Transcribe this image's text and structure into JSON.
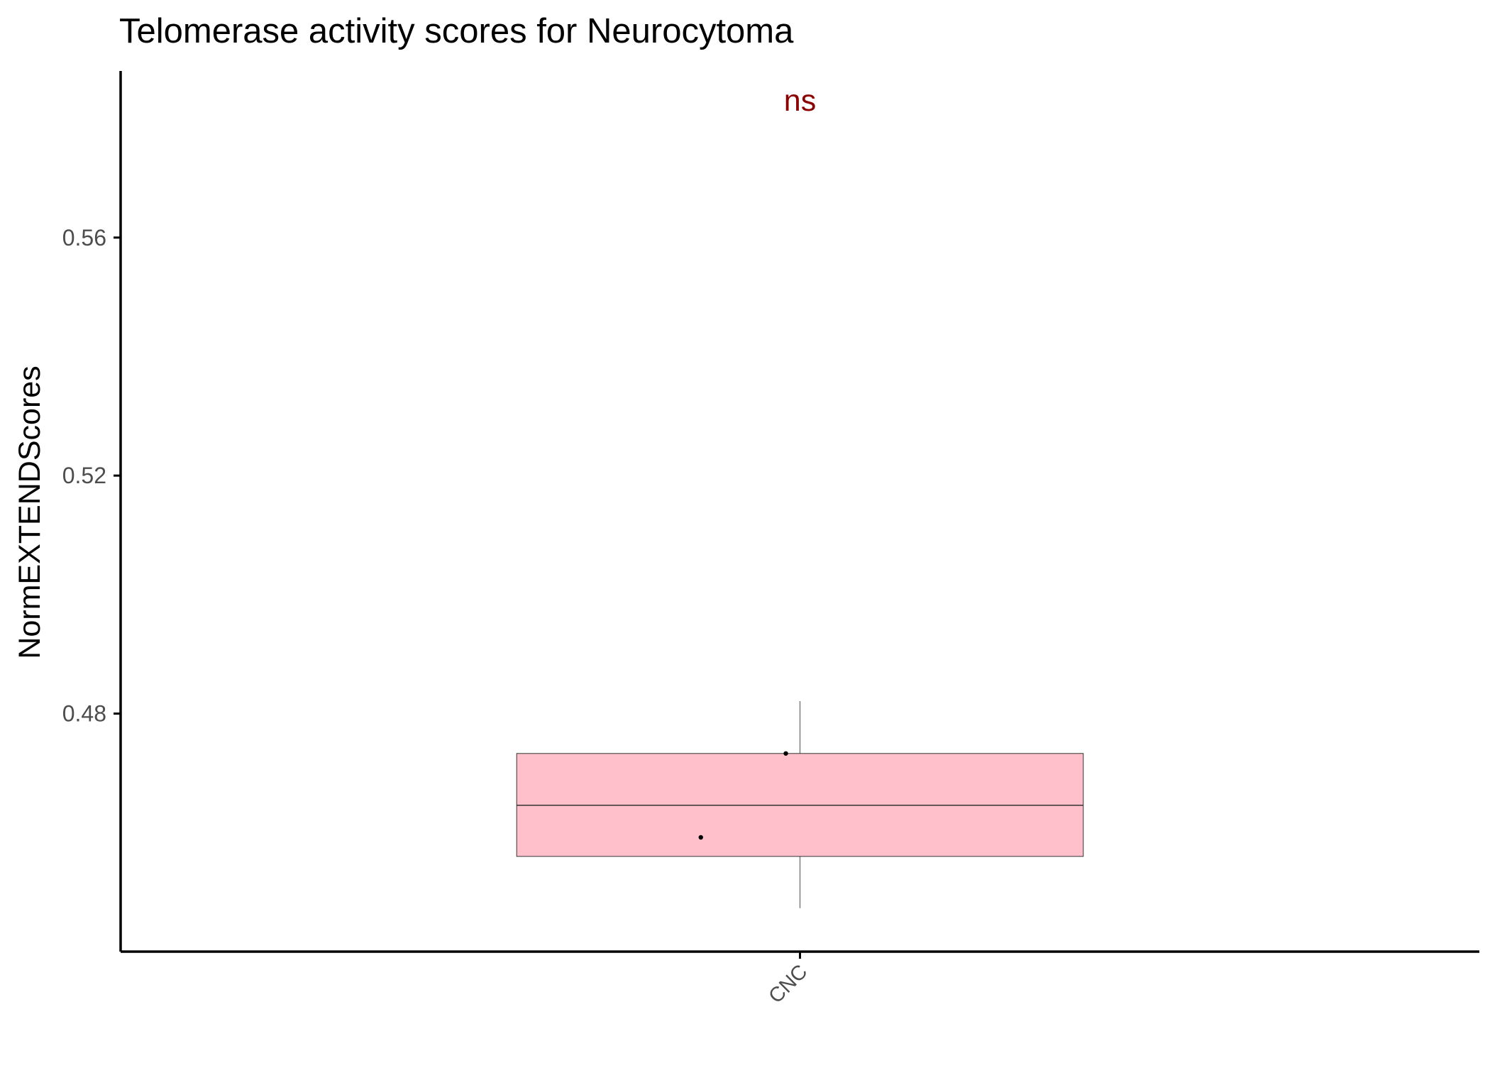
{
  "chart_data": {
    "type": "box",
    "title": "Telomerase activity scores for Neurocytoma",
    "xlabel": "",
    "ylabel": "NormEXTENDScores",
    "categories": [
      "CNC"
    ],
    "y_ticks": [
      0.48,
      0.52,
      0.56
    ],
    "y_tick_labels": [
      "0.48",
      "0.52",
      "0.56"
    ],
    "ylim": [
      0.44,
      0.588
    ],
    "grid": false,
    "legend": "none",
    "boxes": [
      {
        "category": "CNC",
        "whisker_low": 0.4473,
        "q1": 0.456,
        "median": 0.4646,
        "q3": 0.4733,
        "whisker_high": 0.4821
      }
    ],
    "points": [
      {
        "category": "CNC",
        "y": 0.4733,
        "jitter": -0.05
      },
      {
        "category": "CNC",
        "y": 0.4592,
        "jitter": -0.35
      }
    ],
    "annotation": {
      "text": "ns",
      "y": 0.583,
      "color": "#8b0000"
    },
    "colors": {
      "box_fill": "#ffc0cb",
      "box_outline": "#333333",
      "whisker": "#7f7f7f",
      "point": "#000000",
      "axis": "#000000"
    }
  }
}
